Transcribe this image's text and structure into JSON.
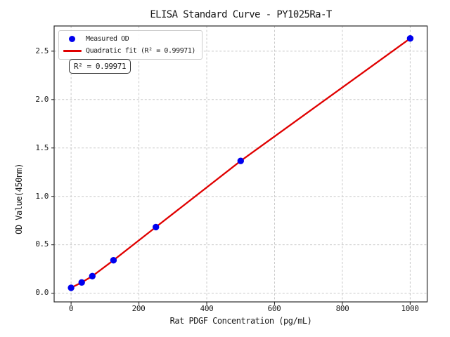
{
  "figure": {
    "title": "ELISA Standard Curve - PY1025Ra-T",
    "xlabel": "Rat PDGF Concentration (pg/mL)",
    "ylabel": "OD Value(450nm)",
    "annotation": "R² = 0.99971"
  },
  "legend": {
    "position": "upper left",
    "items": [
      {
        "label": "Measured OD",
        "marker": "circle"
      },
      {
        "label": "Quadratic fit (R² = 0.99971)",
        "marker": "line"
      }
    ]
  },
  "colors": {
    "marker_blue": "#0000ee",
    "fit_red": "#e00000",
    "grid": "#c9c9c9",
    "spine": "#2a2a2a",
    "legend_border": "#cccccc"
  },
  "chart_data": {
    "type": "scatter",
    "title": "ELISA Standard Curve - PY1025Ra-T",
    "xlabel": "Rat PDGF Concentration (pg/mL)",
    "ylabel": "OD Value(450nm)",
    "xlim": [
      -50,
      1050
    ],
    "ylim": [
      -0.09,
      2.76
    ],
    "x_ticks": [
      0,
      200,
      400,
      600,
      800,
      1000
    ],
    "x_tick_labels": [
      "0",
      "200",
      "400",
      "600",
      "800",
      "1000"
    ],
    "y_ticks": [
      0.0,
      0.5,
      1.0,
      1.5,
      2.0,
      2.5
    ],
    "y_tick_labels": [
      "0.0",
      "0.5",
      "1.0",
      "1.5",
      "2.0",
      "2.5"
    ],
    "grid": true,
    "legend_position": "upper left",
    "r_squared": "0.99971",
    "series": [
      {
        "name": "Measured OD",
        "type": "scatter",
        "color": "#0000ee",
        "x": [
          0,
          31.25,
          62.5,
          125,
          250,
          500,
          1000
        ],
        "y": [
          0.056,
          0.111,
          0.176,
          0.34,
          0.683,
          1.366,
          2.632
        ]
      },
      {
        "name": "Quadratic fit (R² = 0.99971)",
        "type": "line",
        "color": "#e00000",
        "r_squared": "0.99971",
        "x": [
          0,
          31.25,
          62.5,
          125,
          250,
          500,
          1000
        ],
        "y": [
          0.056,
          0.111,
          0.176,
          0.34,
          0.683,
          1.366,
          2.632
        ]
      }
    ]
  }
}
